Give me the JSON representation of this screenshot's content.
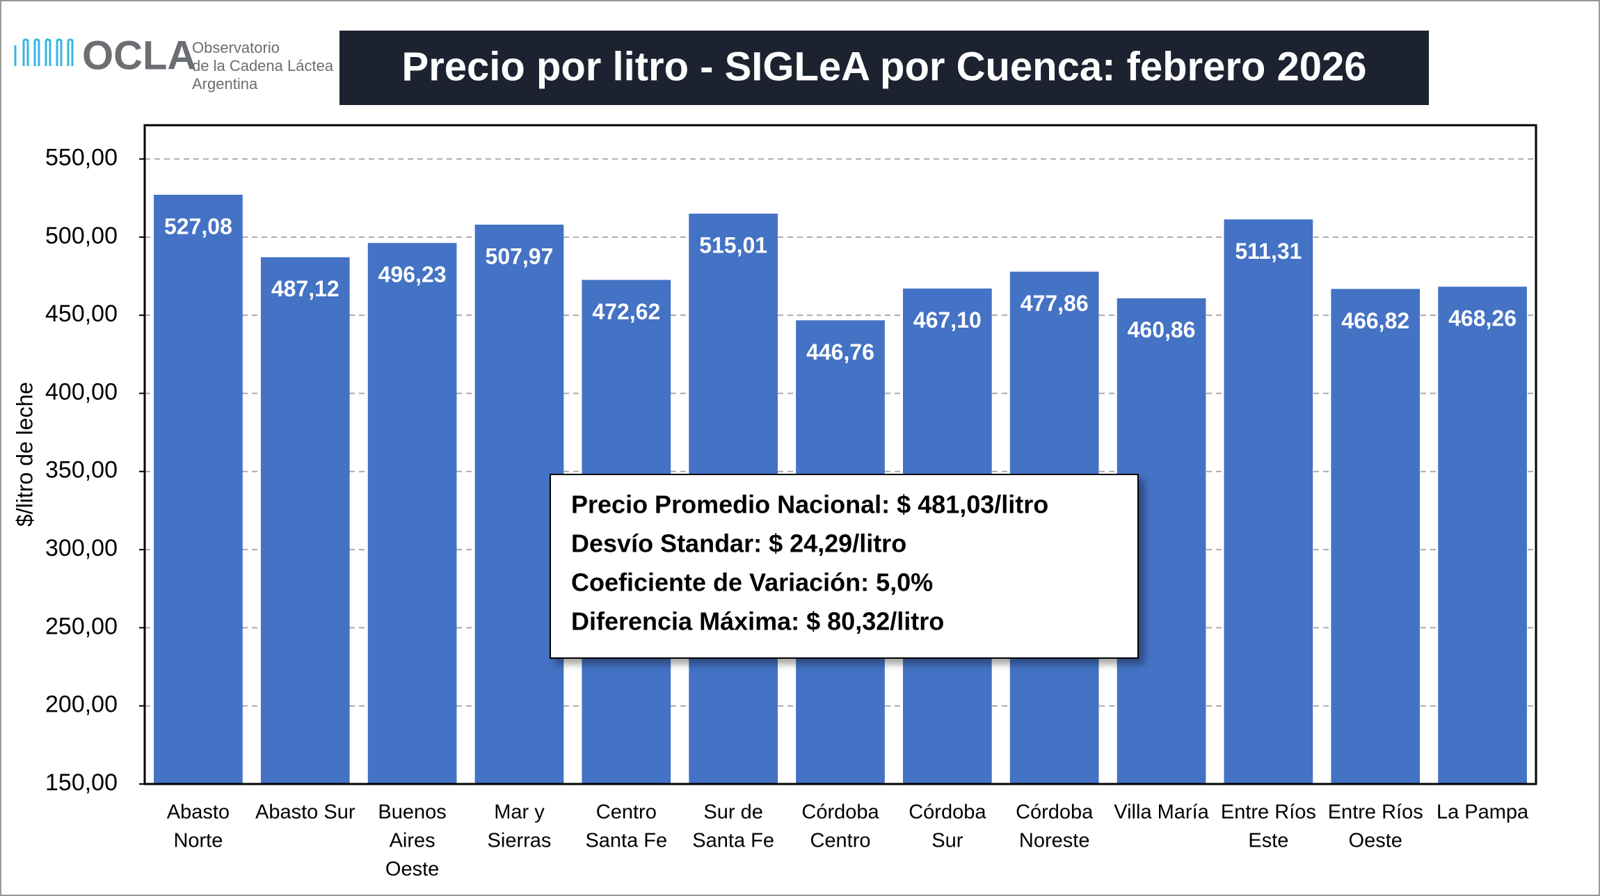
{
  "logo": {
    "name": "OCLA",
    "line1": "Observatorio",
    "line2": "de la Cadena Láctea",
    "line3": "Argentina"
  },
  "chart_data": {
    "type": "bar",
    "title": "Precio por litro - SIGLeA por Cuenca: febrero 2026",
    "y_label": "$/litro de leche",
    "categories": [
      [
        "Abasto",
        "Norte"
      ],
      [
        "Abasto Sur"
      ],
      [
        "Buenos",
        "Aires",
        "Oeste"
      ],
      [
        "Mar y",
        "Sierras"
      ],
      [
        "Centro",
        "Santa Fe"
      ],
      [
        "Sur de",
        "Santa Fe"
      ],
      [
        "Córdoba",
        "Centro"
      ],
      [
        "Córdoba",
        "Sur"
      ],
      [
        "Córdoba",
        "Noreste"
      ],
      [
        "Villa María"
      ],
      [
        "Entre Ríos",
        "Este"
      ],
      [
        "Entre Ríos",
        "Oeste"
      ],
      [
        "La Pampa"
      ]
    ],
    "values": [
      527.08,
      487.12,
      496.23,
      507.97,
      472.62,
      515.01,
      446.76,
      467.1,
      477.86,
      460.86,
      511.31,
      466.82,
      468.26
    ],
    "value_labels": [
      "527,08",
      "487,12",
      "496,23",
      "507,97",
      "472,62",
      "515,01",
      "446,76",
      "467,10",
      "477,86",
      "460,86",
      "511,31",
      "466,82",
      "468,26"
    ],
    "color": "#4472c4",
    "ylim": [
      150,
      571.6
    ],
    "yticks": [
      {
        "value": 150,
        "label": "150,00"
      },
      {
        "value": 200,
        "label": "200,00"
      },
      {
        "value": 250,
        "label": "250,00"
      },
      {
        "value": 300,
        "label": "300,00"
      },
      {
        "value": 350,
        "label": "350,00"
      },
      {
        "value": 400,
        "label": "400,00"
      },
      {
        "value": 450,
        "label": "450,00"
      },
      {
        "value": 500,
        "label": "500,00"
      },
      {
        "value": 550,
        "label": "550,00"
      }
    ],
    "grid": true,
    "annotations": [
      "Precio Promedio Nacional: $ 481,03/litro",
      "Desvío Standar: $ 24,29/litro",
      "Coeficiente de Variación: 5,0%",
      "Diferencia Máxima: $ 80,32/litro"
    ]
  }
}
